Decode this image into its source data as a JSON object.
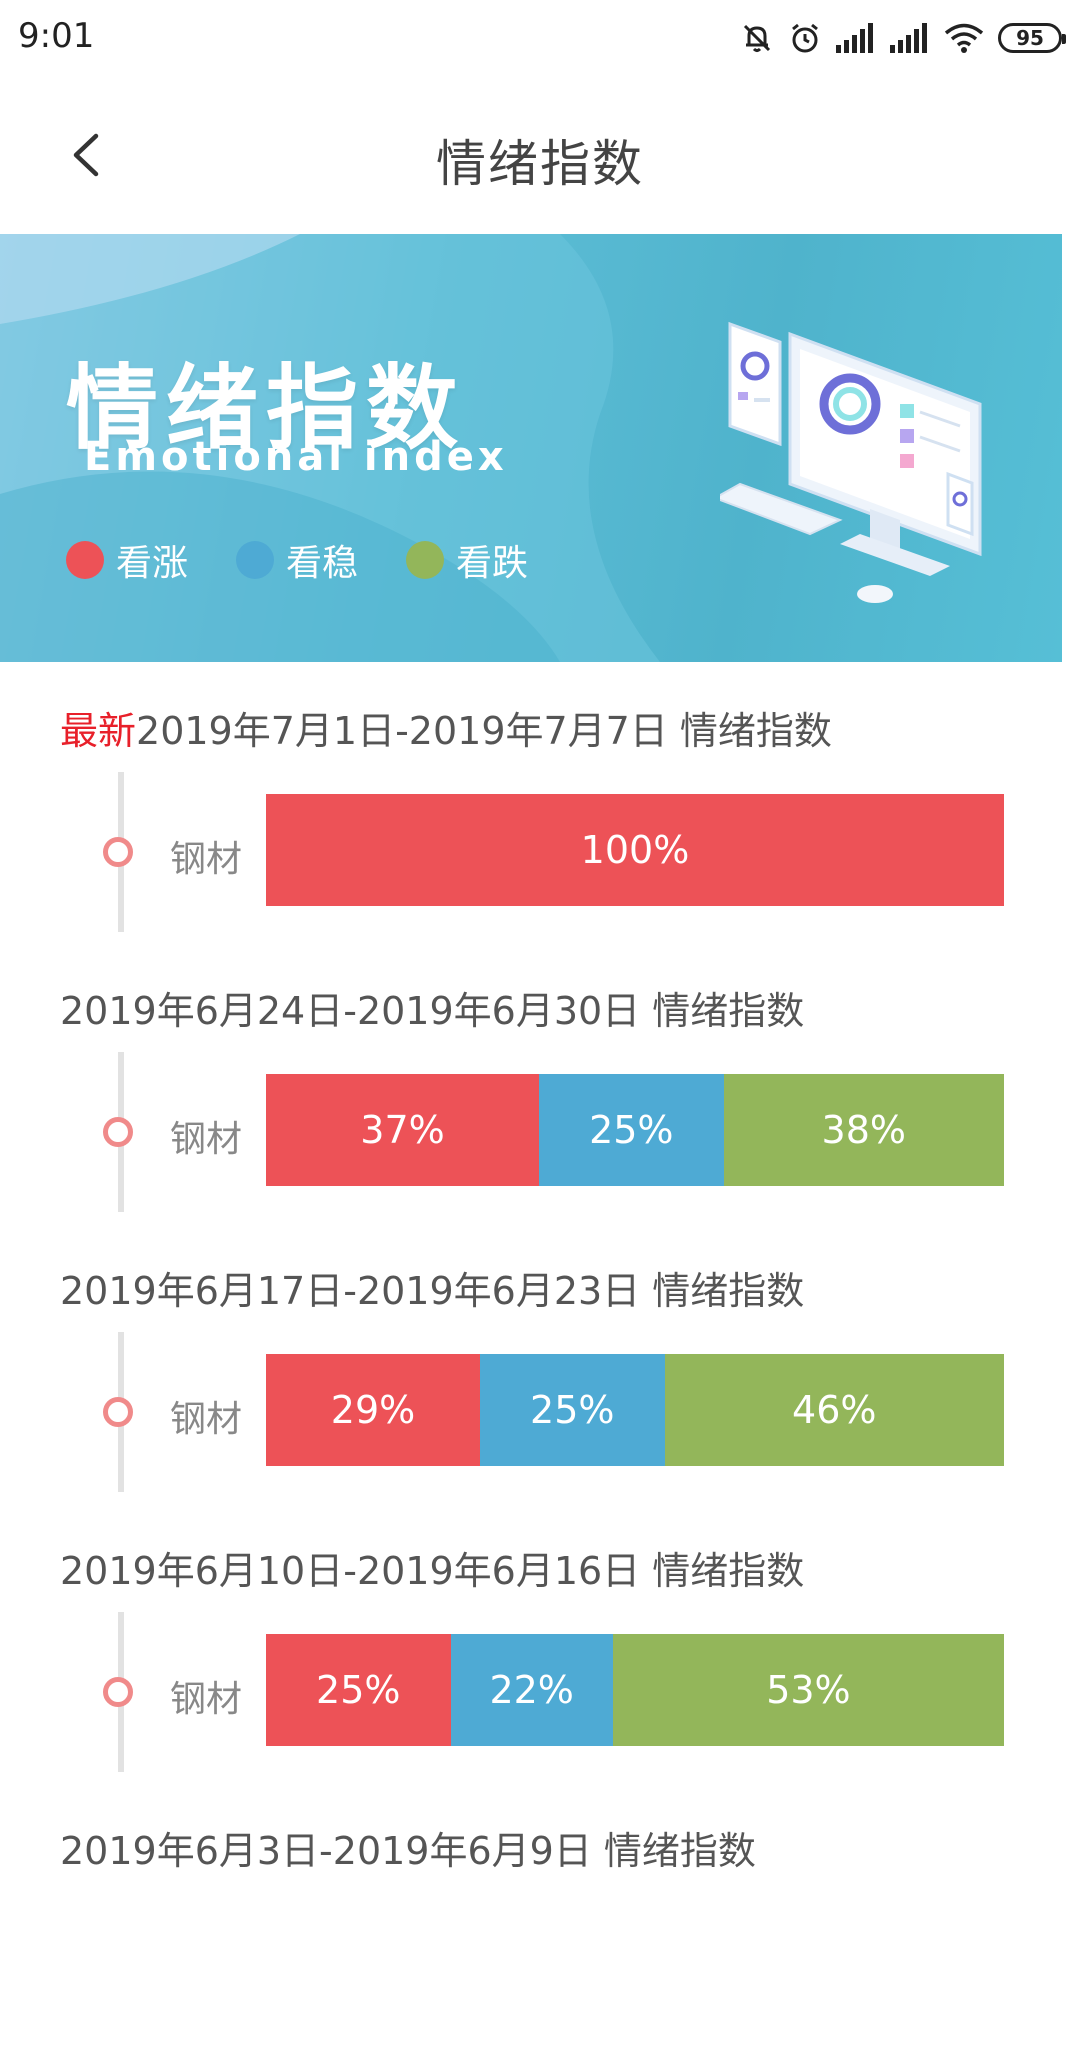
{
  "status_bar": {
    "time": "9:01",
    "battery": "95",
    "icons": [
      "mute-icon",
      "alarm-icon",
      "signal-icon",
      "signal-icon",
      "wifi-icon",
      "battery-icon"
    ]
  },
  "header": {
    "title": "情绪指数"
  },
  "banner": {
    "title": "情绪指数",
    "subtitle": "Emotional index",
    "legend": [
      {
        "label": "看涨",
        "color": "#ed5257"
      },
      {
        "label": "看稳",
        "color": "#4eaad4"
      },
      {
        "label": "看跌",
        "color": "#93b65a"
      }
    ]
  },
  "colors": {
    "up": "#ed5257",
    "stable": "#4eaad4",
    "down": "#93b65a",
    "latest_tag": "#e8202a"
  },
  "periods": [
    {
      "latest_tag": "最新",
      "range": "2019年7月1日-2019年7月7日 情绪指数",
      "item": "钢材",
      "up": 100,
      "stable": 0,
      "down": 0,
      "up_label": "100%",
      "stable_label": "",
      "down_label": ""
    },
    {
      "latest_tag": "",
      "range": "2019年6月24日-2019年6月30日 情绪指数",
      "item": "钢材",
      "up": 37,
      "stable": 25,
      "down": 38,
      "up_label": "37%",
      "stable_label": "25%",
      "down_label": "38%"
    },
    {
      "latest_tag": "",
      "range": "2019年6月17日-2019年6月23日 情绪指数",
      "item": "钢材",
      "up": 29,
      "stable": 25,
      "down": 46,
      "up_label": "29%",
      "stable_label": "25%",
      "down_label": "46%"
    },
    {
      "latest_tag": "",
      "range": "2019年6月10日-2019年6月16日 情绪指数",
      "item": "钢材",
      "up": 25,
      "stable": 22,
      "down": 53,
      "up_label": "25%",
      "stable_label": "22%",
      "down_label": "53%"
    },
    {
      "latest_tag": "",
      "range": "2019年6月3日-2019年6月9日 情绪指数"
    }
  ]
}
